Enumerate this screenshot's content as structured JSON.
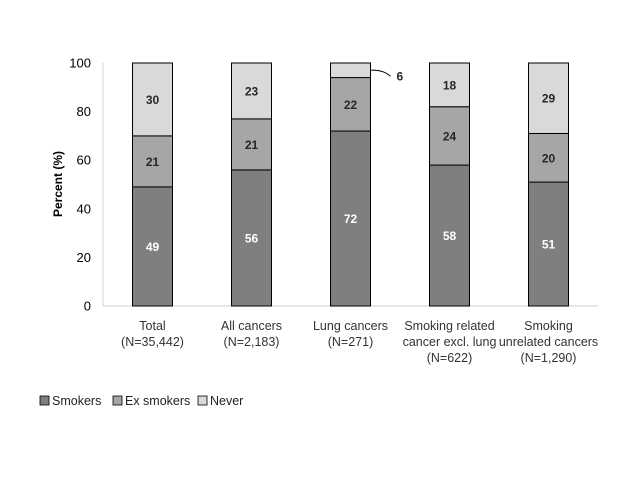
{
  "chart_data": {
    "type": "bar",
    "stacked": true,
    "title": "",
    "xlabel": "",
    "ylabel": "Percent (%)",
    "ylim": [
      0,
      100
    ],
    "yticks": [
      0,
      20,
      40,
      60,
      80,
      100
    ],
    "grid": false,
    "legend_position": "bottom-left",
    "categories": [
      [
        "Total",
        "(N=35,442)"
      ],
      [
        "All cancers",
        "(N=2,183)"
      ],
      [
        "Lung cancers",
        "(N=271)"
      ],
      [
        "Smoking related",
        "cancer excl. lung",
        "(N=622)"
      ],
      [
        "Smoking",
        "unrelated cancers",
        "(N=1,290)"
      ]
    ],
    "series": [
      {
        "name": "Smokers",
        "values": [
          49,
          56,
          72,
          58,
          51
        ],
        "color": "#7f7f7f",
        "labels": [
          "49",
          "56",
          "72",
          "58",
          "51"
        ]
      },
      {
        "name": "Ex smokers",
        "values": [
          21,
          21,
          22,
          24,
          20
        ],
        "color": "#a6a6a6",
        "labels": [
          "21",
          "21",
          "22",
          "24",
          "20"
        ]
      },
      {
        "name": "Never",
        "values": [
          30,
          23,
          6,
          18,
          29
        ],
        "color": "#d9d9d9",
        "labels": [
          "30",
          "23",
          "6",
          "18",
          "29"
        ]
      }
    ]
  }
}
